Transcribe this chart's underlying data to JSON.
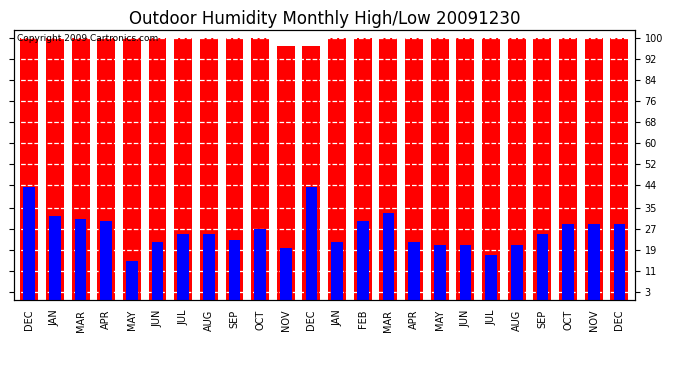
{
  "title": "Outdoor Humidity Monthly High/Low 20091230",
  "copyright": "Copyright 2009 Cartronics.com",
  "categories": [
    "DEC",
    "JAN",
    "MAR",
    "APR",
    "MAY",
    "JUN",
    "JUL",
    "AUG",
    "SEP",
    "OCT",
    "NOV",
    "DEC",
    "JAN",
    "FEB",
    "MAR",
    "APR",
    "MAY",
    "JUN",
    "JUL",
    "AUG",
    "SEP",
    "OCT",
    "NOV",
    "DEC"
  ],
  "high_values": [
    100,
    100,
    100,
    100,
    100,
    100,
    100,
    100,
    100,
    100,
    97,
    97,
    100,
    100,
    100,
    100,
    100,
    100,
    100,
    100,
    100,
    100,
    100,
    100
  ],
  "low_values": [
    43,
    32,
    31,
    30,
    15,
    22,
    25,
    25,
    23,
    27,
    20,
    43,
    22,
    30,
    33,
    22,
    21,
    21,
    17,
    21,
    25,
    29,
    29,
    29
  ],
  "bar_color_high": "#ff0000",
  "bar_color_low": "#0000ff",
  "bg_color": "#ffffff",
  "grid_color": "#aaaaaa",
  "yticks": [
    3,
    11,
    19,
    27,
    35,
    44,
    52,
    60,
    68,
    76,
    84,
    92,
    100
  ],
  "ylim": [
    0,
    103
  ],
  "red_bar_width": 0.7,
  "blue_bar_width": 0.45,
  "title_fontsize": 12,
  "tick_fontsize": 7,
  "copyright_fontsize": 6.5
}
